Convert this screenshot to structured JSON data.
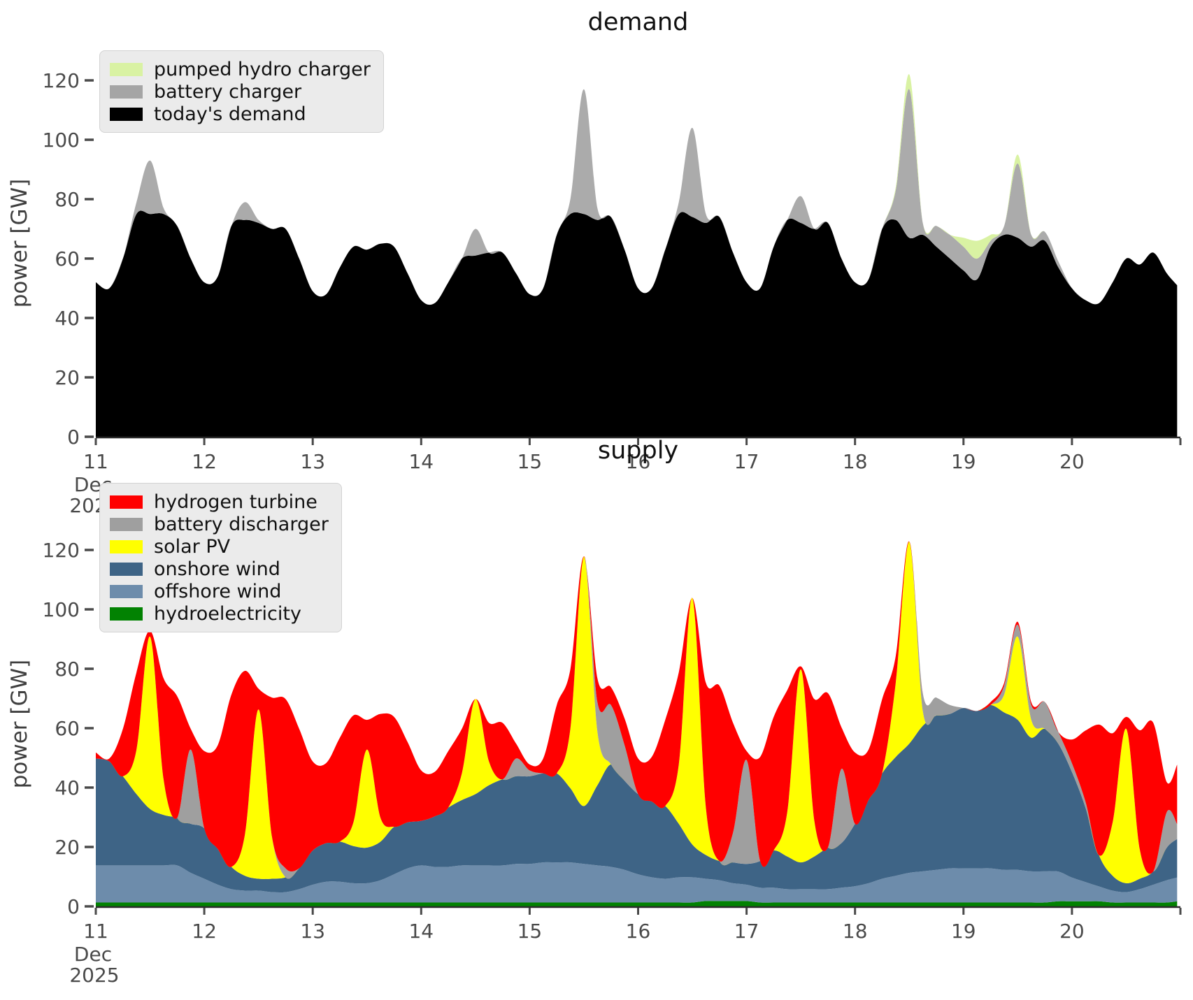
{
  "figure": {
    "background": "#ffffff",
    "tick_color": "#4a4a4a",
    "spine_color": "#2b2b2b",
    "label_color": "#3f3f3f"
  },
  "chart_data": [
    {
      "type": "area",
      "stacked": true,
      "title": "demand",
      "ylabel": "power [GW]",
      "grid": false,
      "legend_position": "upper-left",
      "y_ticks": [
        0,
        20,
        40,
        60,
        80,
        100,
        120
      ],
      "ylim": [
        0,
        132
      ],
      "x_tick_days": [
        11,
        12,
        13,
        14,
        15,
        16,
        17,
        18,
        19,
        20
      ],
      "x_month_lines": [
        "Dec",
        "2025"
      ],
      "xlim_days": [
        11,
        20.97
      ],
      "x_days": [
        11,
        11.125,
        11.25,
        11.375,
        11.5,
        11.625,
        11.75,
        11.875,
        12,
        12.125,
        12.25,
        12.375,
        12.5,
        12.625,
        12.75,
        12.875,
        13,
        13.125,
        13.25,
        13.375,
        13.5,
        13.625,
        13.75,
        13.875,
        14,
        14.125,
        14.25,
        14.375,
        14.5,
        14.625,
        14.75,
        14.875,
        15,
        15.125,
        15.25,
        15.375,
        15.5,
        15.625,
        15.75,
        15.875,
        16,
        16.125,
        16.25,
        16.375,
        16.5,
        16.625,
        16.75,
        16.875,
        17,
        17.125,
        17.25,
        17.375,
        17.5,
        17.625,
        17.75,
        17.875,
        18,
        18.125,
        18.25,
        18.375,
        18.5,
        18.625,
        18.75,
        18.875,
        19,
        19.125,
        19.25,
        19.375,
        19.5,
        19.625,
        19.75,
        19.875,
        20,
        20.125,
        20.25,
        20.375,
        20.5,
        20.625,
        20.75,
        20.875,
        20.97
      ],
      "series": [
        {
          "name": "today's demand",
          "color": "#000000",
          "values": [
            52,
            50,
            60,
            75,
            75,
            75,
            71,
            60,
            52,
            54,
            71,
            73,
            72,
            70,
            70,
            60,
            49,
            48,
            57,
            64,
            63,
            65,
            64,
            55,
            46,
            45,
            52,
            60,
            61,
            62,
            62,
            55,
            48,
            50,
            68,
            75,
            75,
            73,
            74,
            63,
            50,
            50,
            63,
            75,
            74,
            72,
            74,
            62,
            52,
            50,
            64,
            73,
            72,
            70,
            72,
            60,
            52,
            53,
            70,
            73,
            67,
            68,
            64,
            60,
            56,
            53,
            64,
            68,
            67,
            64,
            66,
            57,
            50,
            46,
            45,
            52,
            60,
            58,
            62,
            55,
            51
          ]
        },
        {
          "name": "battery charger",
          "color": "#ababab",
          "values": [
            0,
            0,
            0,
            4,
            18,
            2,
            0,
            0,
            0,
            0,
            0,
            6,
            1,
            0,
            0,
            0,
            0,
            0,
            0,
            0,
            0,
            0,
            0,
            0,
            0,
            0,
            0,
            0,
            9,
            0,
            0,
            0,
            0,
            0,
            0,
            5,
            42,
            4,
            0,
            0,
            0,
            0,
            0,
            4,
            30,
            3,
            0,
            0,
            0,
            0,
            0,
            0,
            9,
            0,
            0,
            0,
            0,
            0,
            0,
            10,
            50,
            4,
            7,
            8,
            8,
            7,
            2,
            3,
            25,
            4,
            3,
            2,
            0,
            0,
            0,
            0,
            0,
            0,
            0,
            0,
            0
          ]
        },
        {
          "name": "pumped hydro charger",
          "color": "#d9f2a3",
          "values": [
            0,
            0,
            0,
            0,
            0,
            0,
            0,
            0,
            0,
            0,
            0,
            0,
            0,
            0,
            0,
            0,
            0,
            0,
            0,
            0,
            0,
            0,
            0,
            0,
            0,
            0,
            0,
            0,
            0,
            0,
            0,
            0,
            0,
            0,
            0,
            0,
            0,
            0,
            0,
            0,
            0,
            0,
            0,
            0,
            0,
            0,
            0,
            0,
            0,
            0,
            0,
            0,
            0,
            0,
            0,
            0,
            0,
            0,
            0,
            1,
            5,
            0,
            0,
            0,
            3,
            6,
            2,
            0,
            3,
            0,
            0,
            0,
            0,
            0,
            0,
            0,
            0,
            0,
            0,
            0,
            0
          ]
        }
      ],
      "legend": [
        {
          "label": "pumped hydro charger",
          "color": "#d9f2a3"
        },
        {
          "label": "battery charger",
          "color": "#a5a5a5"
        },
        {
          "label": "today's demand",
          "color": "#000000"
        }
      ]
    },
    {
      "type": "area",
      "stacked": true,
      "title": "supply",
      "ylabel": "power [GW]",
      "grid": false,
      "legend_position": "upper-left",
      "y_ticks": [
        0,
        20,
        40,
        60,
        80,
        100,
        120
      ],
      "ylim": [
        0,
        132
      ],
      "x_tick_days": [
        11,
        12,
        13,
        14,
        15,
        16,
        17,
        18,
        19,
        20
      ],
      "x_month_lines": [
        "Dec",
        "2025"
      ],
      "xlim_days": [
        11,
        20.97
      ],
      "x_days": [
        11,
        11.125,
        11.25,
        11.375,
        11.5,
        11.625,
        11.75,
        11.875,
        12,
        12.125,
        12.25,
        12.375,
        12.5,
        12.625,
        12.75,
        12.875,
        13,
        13.125,
        13.25,
        13.375,
        13.5,
        13.625,
        13.75,
        13.875,
        14,
        14.125,
        14.25,
        14.375,
        14.5,
        14.625,
        14.75,
        14.875,
        15,
        15.125,
        15.25,
        15.375,
        15.5,
        15.625,
        15.75,
        15.875,
        16,
        16.125,
        16.25,
        16.375,
        16.5,
        16.625,
        16.75,
        16.875,
        17,
        17.125,
        17.25,
        17.375,
        17.5,
        17.625,
        17.75,
        17.875,
        18,
        18.125,
        18.25,
        18.375,
        18.5,
        18.625,
        18.75,
        18.875,
        19,
        19.125,
        19.25,
        19.375,
        19.5,
        19.625,
        19.75,
        19.875,
        20,
        20.125,
        20.25,
        20.375,
        20.5,
        20.625,
        20.75,
        20.875,
        20.97
      ],
      "series": [
        {
          "name": "hydroelectricity",
          "color": "#028202",
          "values": [
            1.3,
            1.3,
            1.3,
            1.3,
            1.3,
            1.3,
            1.3,
            1.3,
            1.3,
            1.3,
            1.3,
            1.3,
            1.3,
            1.3,
            1.3,
            1.3,
            1.3,
            1.3,
            1.3,
            1.3,
            1.3,
            1.3,
            1.3,
            1.3,
            1.3,
            1.3,
            1.3,
            1.3,
            1.3,
            1.3,
            1.3,
            1.3,
            1.3,
            1.3,
            1.3,
            1.3,
            1.3,
            1.3,
            1.3,
            1.3,
            1.3,
            1.3,
            1.3,
            1.3,
            1.3,
            1.8,
            1.8,
            1.8,
            1.8,
            1.3,
            1.3,
            1.3,
            1.3,
            1.3,
            1.3,
            1.3,
            1.3,
            1.3,
            1.3,
            1.3,
            1.3,
            1.3,
            1.3,
            1.3,
            1.3,
            1.3,
            1.3,
            1.3,
            1.3,
            1.3,
            1.3,
            1.7,
            1.7,
            1.7,
            1.7,
            1.3,
            1.3,
            1.3,
            1.3,
            1.3,
            1.7
          ]
        },
        {
          "name": "offshore wind",
          "color": "#6d8cab",
          "values": [
            12.5,
            12.5,
            12.5,
            12.5,
            12.5,
            12.5,
            12.5,
            10,
            8,
            6,
            4.5,
            4,
            4,
            3.5,
            3.5,
            4.5,
            6,
            7,
            7,
            6.5,
            6.5,
            7.5,
            9.5,
            11.5,
            12.5,
            12,
            12,
            12.5,
            12.5,
            12.5,
            12.5,
            13,
            13,
            13.5,
            13.5,
            13.5,
            13,
            12.5,
            12,
            11,
            9.5,
            8.5,
            8,
            8.5,
            8.5,
            7.5,
            7,
            6,
            5.5,
            5,
            5,
            4.5,
            4.5,
            4.5,
            4.5,
            5,
            5.5,
            6.5,
            8,
            9,
            10,
            10.5,
            11,
            11.5,
            11.5,
            11.5,
            11.5,
            11,
            11,
            10.5,
            10.5,
            10,
            8,
            6.5,
            5,
            4,
            3.5,
            4.5,
            6,
            7.5,
            8
          ]
        },
        {
          "name": "onshore wind",
          "color": "#3e6486",
          "values": [
            36,
            35,
            30,
            24,
            19,
            17,
            16,
            16.5,
            17,
            12,
            7.5,
            5,
            4,
            4.5,
            5,
            7,
            11.5,
            13,
            13.5,
            12.5,
            12,
            13,
            16,
            15.5,
            15,
            17,
            20,
            22,
            24,
            27,
            29,
            29.5,
            29.5,
            30,
            30,
            25,
            19.5,
            27,
            34.5,
            30,
            27,
            25.5,
            24.5,
            18,
            11,
            8,
            6.5,
            7,
            7,
            9,
            12.5,
            11,
            9,
            11,
            14,
            15,
            21,
            28,
            35.5,
            40,
            43.5,
            49,
            52,
            52,
            54,
            53,
            55,
            53,
            50.5,
            45,
            48,
            43,
            35.5,
            25,
            10.5,
            5,
            3,
            3.5,
            4.5,
            11,
            13
          ]
        },
        {
          "name": "solar PV",
          "color": "#ffff00",
          "values": [
            0,
            0,
            0,
            15,
            58,
            12,
            0,
            0,
            0,
            0,
            0,
            14,
            57,
            14,
            0,
            0,
            0,
            0,
            0,
            8,
            33,
            8,
            0,
            0,
            0,
            0,
            0,
            9,
            32,
            8,
            0,
            0,
            0,
            0,
            0,
            20,
            84,
            18,
            0,
            0,
            0,
            0,
            0,
            20,
            83,
            16,
            0,
            0,
            0,
            0,
            0,
            15,
            65,
            12,
            0,
            0,
            0,
            0,
            0,
            25,
            68,
            5,
            0,
            0,
            0,
            0,
            0,
            6,
            28,
            6,
            0,
            0,
            0,
            0,
            0,
            18,
            52,
            10,
            0,
            0,
            0
          ]
        },
        {
          "name": "battery discharger",
          "color": "#9f9f9f",
          "values": [
            0,
            0,
            0,
            0,
            0,
            0,
            0,
            25,
            0,
            0,
            0,
            0,
            0,
            0,
            3,
            0,
            0,
            0,
            0,
            0,
            0,
            0,
            0,
            0,
            0,
            0,
            0,
            0,
            0,
            0,
            0,
            6,
            2,
            0,
            0,
            0,
            0,
            10,
            20,
            12,
            0,
            0,
            0,
            0,
            0,
            0,
            0,
            10,
            35,
            0,
            0,
            0,
            0,
            0,
            0,
            25,
            0,
            0,
            0,
            0,
            0,
            6,
            6,
            3,
            0,
            0,
            0,
            3,
            4,
            5,
            9,
            4,
            3,
            2,
            0,
            0,
            0,
            0,
            0,
            12,
            5
          ]
        },
        {
          "name": "hydrogen turbine",
          "color": "#ff0000",
          "values": [
            2,
            1,
            16,
            26,
            2,
            34,
            41,
            7,
            26,
            35,
            58,
            55,
            7,
            47,
            57,
            47,
            30,
            27,
            35,
            36,
            10,
            35,
            37,
            27,
            17,
            15,
            19,
            15,
            0,
            13,
            19,
            5,
            2,
            5,
            23,
            20,
            0,
            8,
            6,
            9,
            12,
            15,
            29,
            31,
            0,
            42,
            59,
            37,
            3,
            35,
            45,
            41,
            1,
            41,
            52,
            14,
            24,
            17,
            25,
            9,
            0,
            0,
            0,
            0,
            0,
            0,
            1,
            1,
            1,
            1,
            0,
            0,
            8,
            24,
            44,
            30,
            4,
            40,
            50,
            10,
            20
          ]
        }
      ],
      "legend": [
        {
          "label": "hydrogen turbine",
          "color": "#ff0000"
        },
        {
          "label": "battery discharger",
          "color": "#9f9f9f"
        },
        {
          "label": "solar PV",
          "color": "#ffff00"
        },
        {
          "label": "onshore wind",
          "color": "#3e6486"
        },
        {
          "label": "offshore wind",
          "color": "#6d8cab"
        },
        {
          "label": "hydroelectricity",
          "color": "#028202"
        }
      ]
    }
  ]
}
